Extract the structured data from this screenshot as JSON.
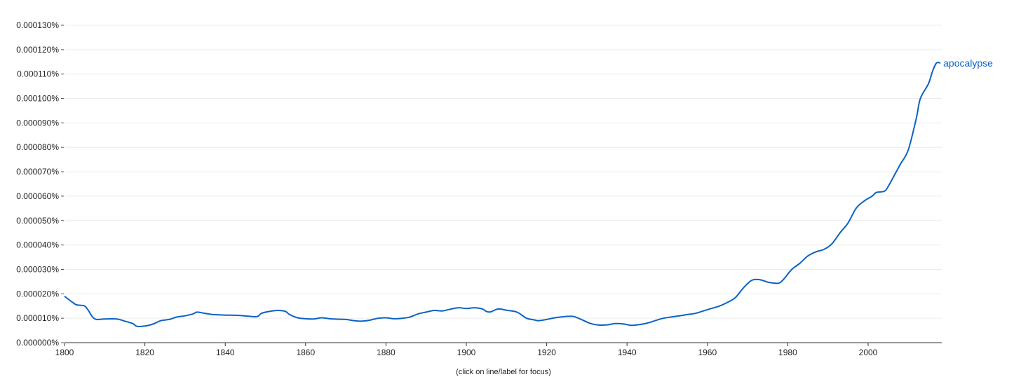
{
  "footer_note": "(click on line/label for focus)",
  "chart_data": {
    "type": "line",
    "xlim": [
      1800,
      2019
    ],
    "ylim": [
      0,
      1.3e-06
    ],
    "x_ticks": [
      1800,
      1820,
      1840,
      1860,
      1880,
      1900,
      1920,
      1940,
      1960,
      1980,
      2000
    ],
    "y_ticks": [
      "0.000000%",
      "0.000010%",
      "0.000020%",
      "0.000030%",
      "0.000040%",
      "0.000050%",
      "0.000060%",
      "0.000070%",
      "0.000080%",
      "0.000090%",
      "0.000100%",
      "0.000110%",
      "0.000120%",
      "0.000130%"
    ],
    "grid": true,
    "series": [
      {
        "name": "apocalypse",
        "color": "#0b62c4",
        "points": [
          [
            1800,
            1.9e-07
          ],
          [
            1802,
            1.65e-07
          ],
          [
            1803,
            1.55e-07
          ],
          [
            1805,
            1.5e-07
          ],
          [
            1806,
            1.3e-07
          ],
          [
            1807,
            1.05e-07
          ],
          [
            1808,
            9.5e-08
          ],
          [
            1810,
            9.7e-08
          ],
          [
            1813,
            9.7e-08
          ],
          [
            1815,
            8.8e-08
          ],
          [
            1817,
            7.8e-08
          ],
          [
            1818,
            6.7e-08
          ],
          [
            1820,
            6.8e-08
          ],
          [
            1822,
            7.6e-08
          ],
          [
            1824,
            9e-08
          ],
          [
            1826,
            9.5e-08
          ],
          [
            1828,
            1.05e-07
          ],
          [
            1830,
            1.1e-07
          ],
          [
            1832,
            1.18e-07
          ],
          [
            1833,
            1.25e-07
          ],
          [
            1835,
            1.2e-07
          ],
          [
            1837,
            1.15e-07
          ],
          [
            1840,
            1.13e-07
          ],
          [
            1843,
            1.12e-07
          ],
          [
            1846,
            1.08e-07
          ],
          [
            1848,
            1.07e-07
          ],
          [
            1849,
            1.2e-07
          ],
          [
            1851,
            1.28e-07
          ],
          [
            1853,
            1.32e-07
          ],
          [
            1855,
            1.28e-07
          ],
          [
            1856,
            1.15e-07
          ],
          [
            1858,
            1.02e-07
          ],
          [
            1860,
            9.8e-08
          ],
          [
            1862,
            9.7e-08
          ],
          [
            1864,
            1.02e-07
          ],
          [
            1866,
            9.8e-08
          ],
          [
            1868,
            9.6e-08
          ],
          [
            1870,
            9.5e-08
          ],
          [
            1872,
            9e-08
          ],
          [
            1874,
            8.8e-08
          ],
          [
            1876,
            9.2e-08
          ],
          [
            1878,
            1e-07
          ],
          [
            1880,
            1.02e-07
          ],
          [
            1882,
            9.8e-08
          ],
          [
            1884,
            1e-07
          ],
          [
            1886,
            1.05e-07
          ],
          [
            1888,
            1.18e-07
          ],
          [
            1890,
            1.25e-07
          ],
          [
            1892,
            1.32e-07
          ],
          [
            1894,
            1.3e-07
          ],
          [
            1896,
            1.37e-07
          ],
          [
            1898,
            1.43e-07
          ],
          [
            1900,
            1.4e-07
          ],
          [
            1902,
            1.43e-07
          ],
          [
            1904,
            1.38e-07
          ],
          [
            1905,
            1.28e-07
          ],
          [
            1906,
            1.26e-07
          ],
          [
            1908,
            1.38e-07
          ],
          [
            1910,
            1.33e-07
          ],
          [
            1912,
            1.28e-07
          ],
          [
            1913,
            1.22e-07
          ],
          [
            1915,
            1e-07
          ],
          [
            1917,
            9.3e-08
          ],
          [
            1918,
            9e-08
          ],
          [
            1920,
            9.5e-08
          ],
          [
            1922,
            1.02e-07
          ],
          [
            1924,
            1.06e-07
          ],
          [
            1926,
            1.08e-07
          ],
          [
            1927,
            1.06e-07
          ],
          [
            1929,
            9.2e-08
          ],
          [
            1931,
            7.8e-08
          ],
          [
            1933,
            7.2e-08
          ],
          [
            1935,
            7.3e-08
          ],
          [
            1937,
            7.8e-08
          ],
          [
            1939,
            7.7e-08
          ],
          [
            1941,
            7.1e-08
          ],
          [
            1943,
            7.4e-08
          ],
          [
            1945,
            8e-08
          ],
          [
            1947,
            9e-08
          ],
          [
            1949,
            1e-07
          ],
          [
            1951,
            1.05e-07
          ],
          [
            1953,
            1.1e-07
          ],
          [
            1955,
            1.15e-07
          ],
          [
            1957,
            1.2e-07
          ],
          [
            1959,
            1.3e-07
          ],
          [
            1961,
            1.4e-07
          ],
          [
            1963,
            1.5e-07
          ],
          [
            1965,
            1.65e-07
          ],
          [
            1967,
            1.85e-07
          ],
          [
            1969,
            2.25e-07
          ],
          [
            1971,
            2.55e-07
          ],
          [
            1973,
            2.58e-07
          ],
          [
            1975,
            2.48e-07
          ],
          [
            1977,
            2.43e-07
          ],
          [
            1978,
            2.45e-07
          ],
          [
            1979,
            2.6e-07
          ],
          [
            1981,
            3e-07
          ],
          [
            1983,
            3.25e-07
          ],
          [
            1985,
            3.55e-07
          ],
          [
            1987,
            3.72e-07
          ],
          [
            1989,
            3.82e-07
          ],
          [
            1991,
            4.05e-07
          ],
          [
            1993,
            4.5e-07
          ],
          [
            1995,
            4.9e-07
          ],
          [
            1997,
            5.5e-07
          ],
          [
            1999,
            5.8e-07
          ],
          [
            2001,
            6e-07
          ],
          [
            2002,
            6.15e-07
          ],
          [
            2004,
            6.2e-07
          ],
          [
            2005,
            6.4e-07
          ],
          [
            2007,
            7e-07
          ],
          [
            2008,
            7.3e-07
          ],
          [
            2010,
            7.9e-07
          ],
          [
            2012,
            9.2e-07
          ],
          [
            2013,
            1e-06
          ],
          [
            2015,
            1.06e-06
          ],
          [
            2016,
            1.11e-06
          ],
          [
            2017,
            1.145e-06
          ],
          [
            2018,
            1.145e-06
          ]
        ]
      }
    ]
  }
}
